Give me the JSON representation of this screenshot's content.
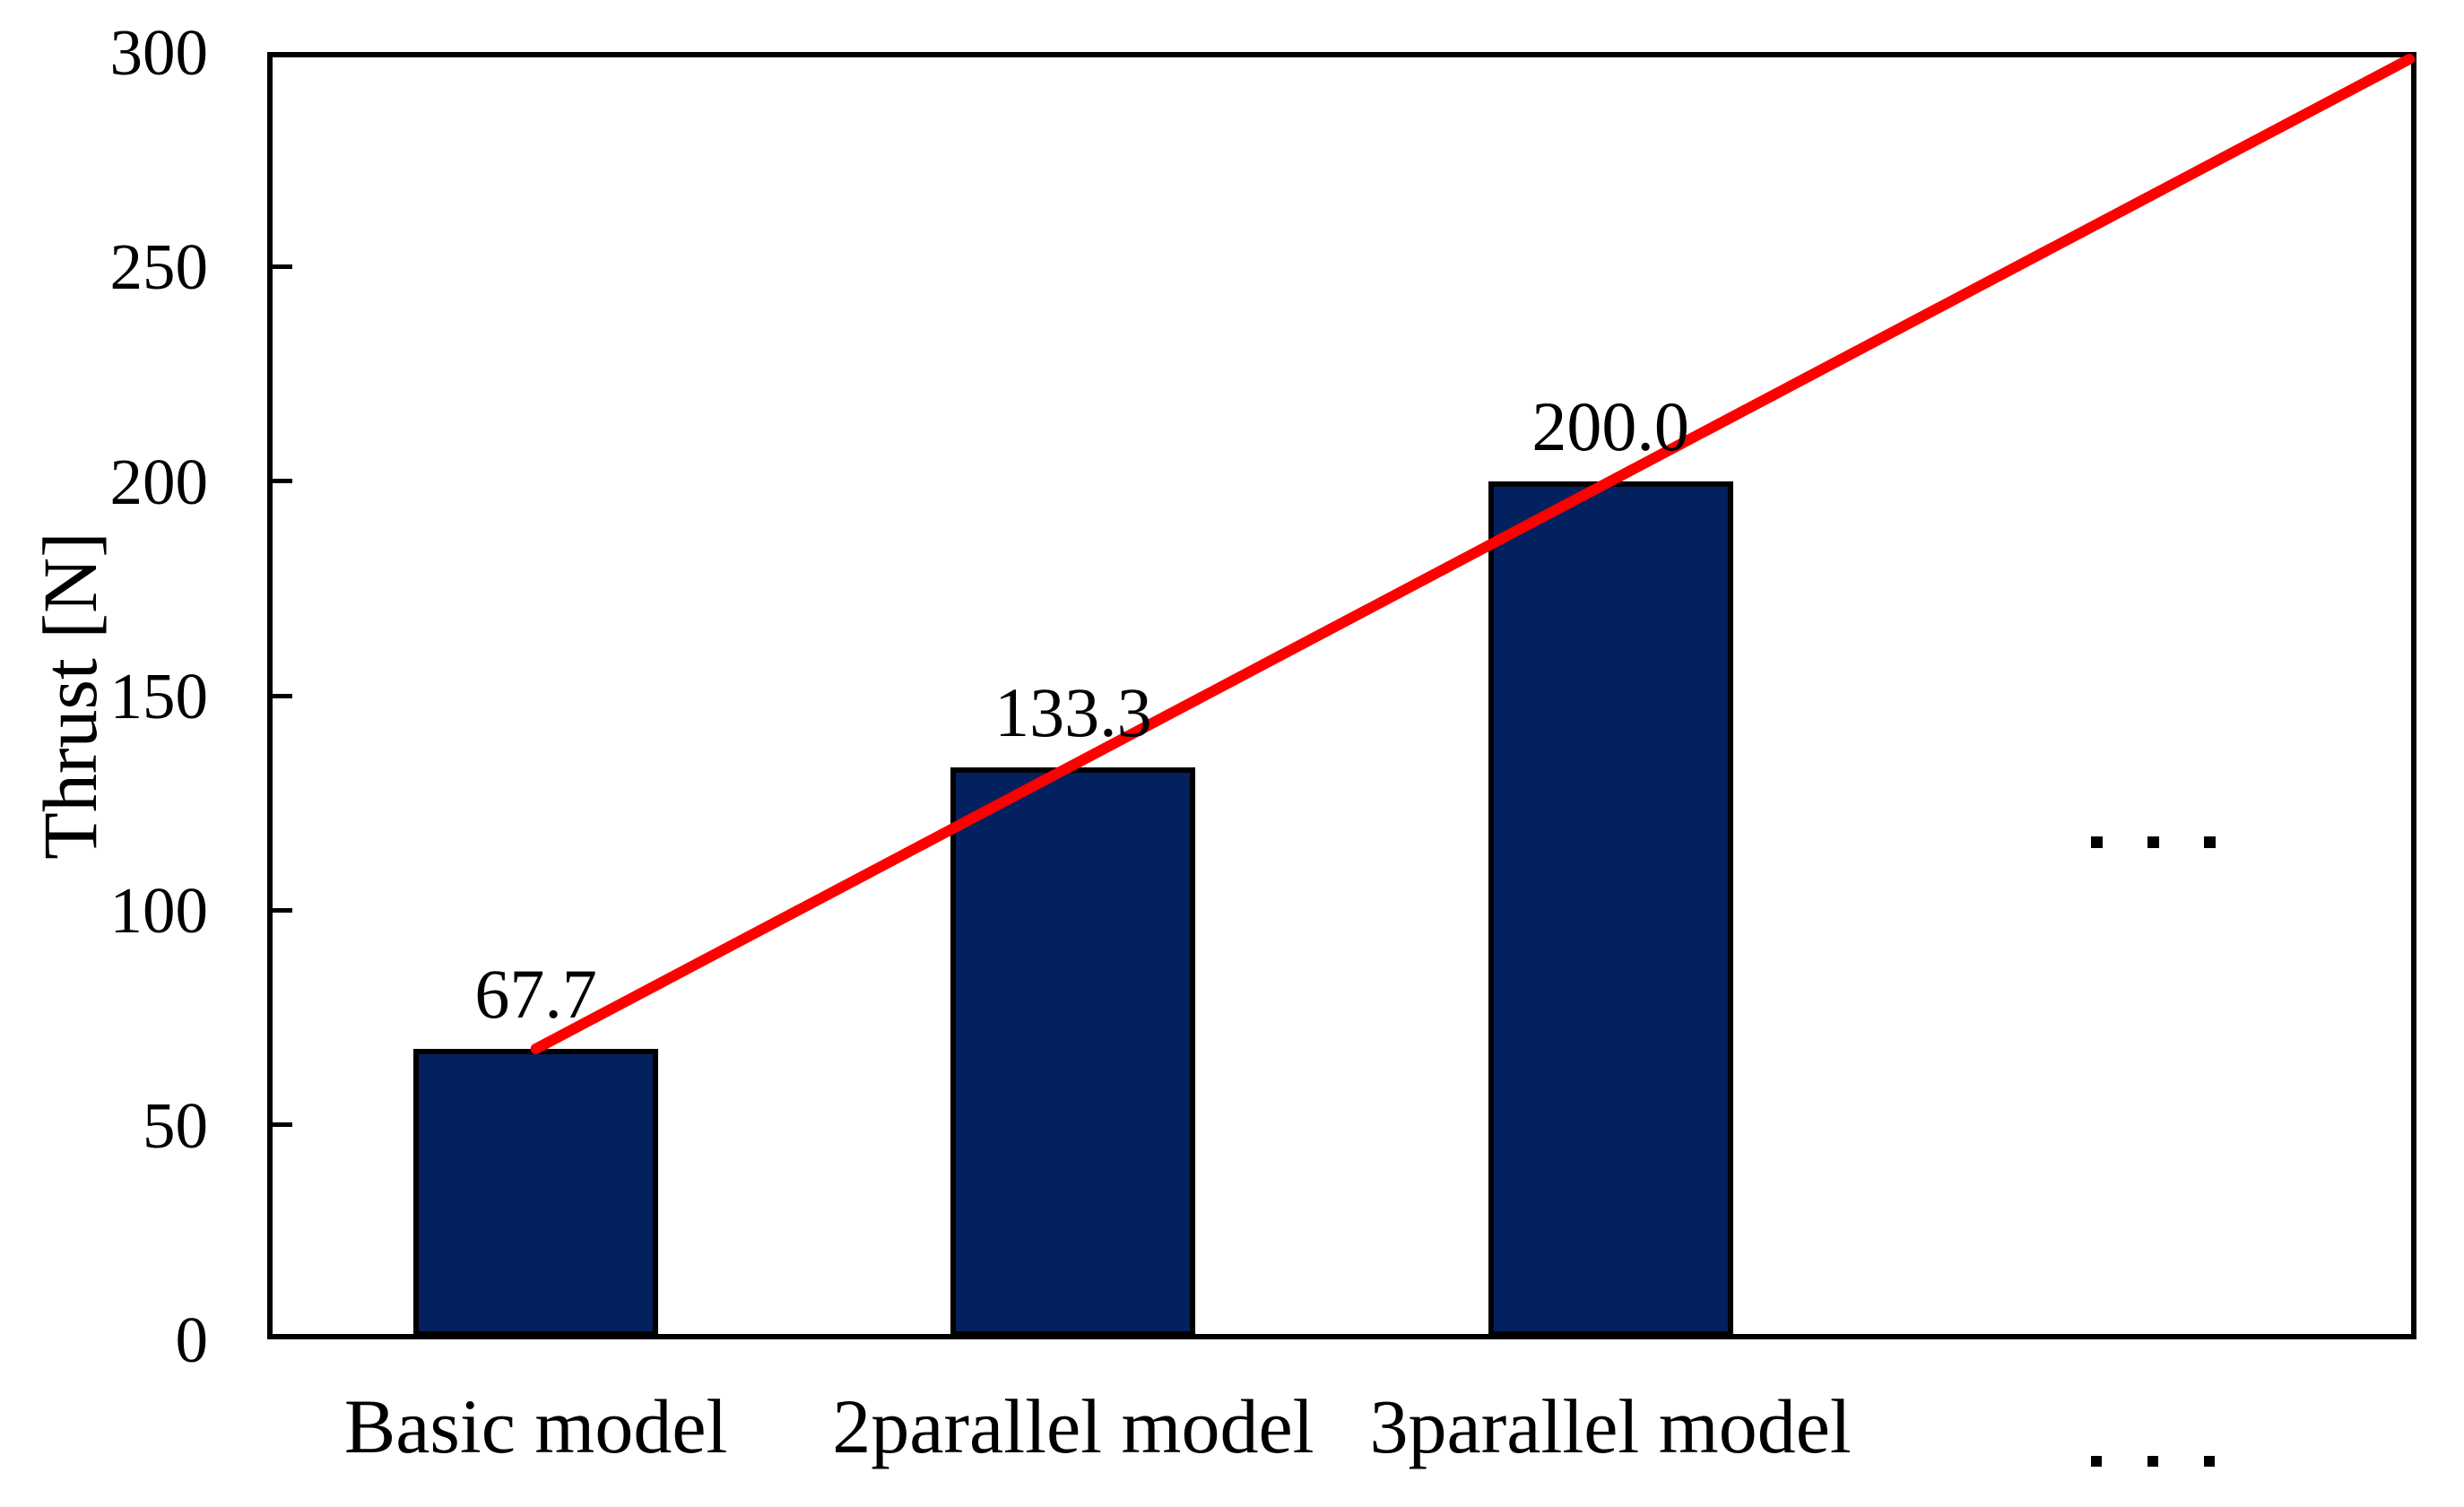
{
  "figure": {
    "background": "#ffffff"
  },
  "chart_data": {
    "type": "bar",
    "title": "",
    "xlabel": "",
    "ylabel": "Thrust [N]",
    "ylim": [
      0,
      300
    ],
    "ytick_step": 50,
    "yticks": [
      0,
      50,
      100,
      150,
      200,
      250,
      300
    ],
    "grid": false,
    "legend": false,
    "categories": [
      "Basic model",
      "2parallel model",
      "3parallel model",
      "..."
    ],
    "series": [
      {
        "name": "Thrust",
        "values": [
          67.7,
          133.3,
          200.0,
          null
        ]
      }
    ],
    "bar_value_labels": [
      "67.7",
      "133.3",
      "200.0"
    ],
    "trend_line": {
      "shape": "linear",
      "color": "#ff0000",
      "start": {
        "category_index": 0,
        "value": 67.7
      },
      "end": {
        "at": "plot-right-edge",
        "value": 300
      }
    },
    "ellipsis": {
      "in_plot": "...",
      "below_axis": "..."
    },
    "colors": {
      "bar_fill": "#02215e",
      "bar_border": "#000000",
      "axis": "#000000",
      "text": "#000000"
    }
  }
}
